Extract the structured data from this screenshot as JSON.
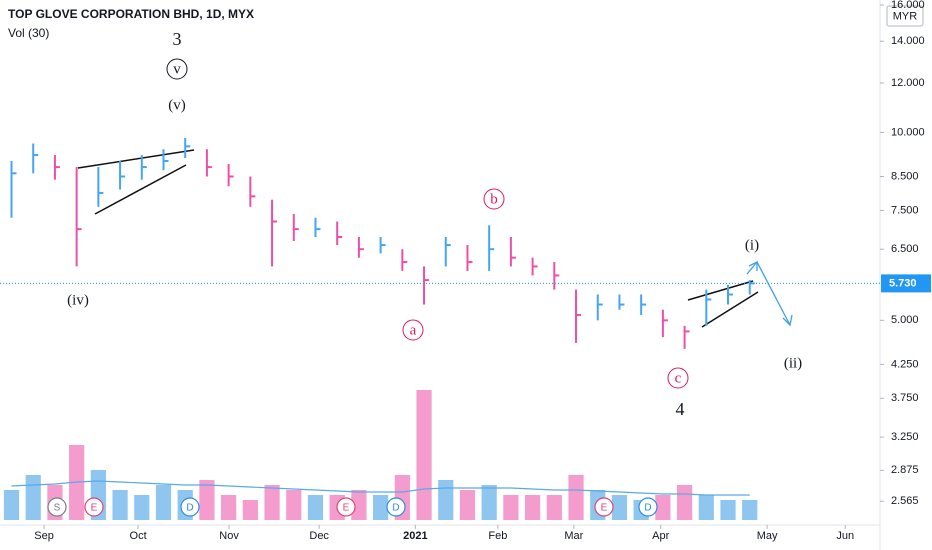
{
  "chart_data": {
    "type": "ohlc",
    "title": "TOP GLOVE CORPORATION BHD, 1D, MYX",
    "subtitle": "Vol (30)",
    "currency": "MYR",
    "log_scale": true,
    "grid": false,
    "up_color": "#42a5f5",
    "down_color": "#ec4fa8",
    "volume_up_color": "#8ec6f0",
    "volume_down_color": "#f39ccd",
    "volume_ma_color": "#5aa9e6",
    "x": [
      -1.5,
      -0.5,
      0.5,
      1.5,
      2.5,
      3.5,
      4.5,
      5.5,
      6.5,
      7.5,
      8.5,
      9.5,
      10.5,
      11.5,
      12.5,
      13.5,
      14.5,
      15.5,
      16.5,
      17.5,
      18.5,
      19.5,
      20.5,
      21.5,
      22.5,
      23.5,
      24.5,
      25.5,
      26.5,
      27.5,
      28.5,
      29.5,
      30.5,
      31.5,
      32.5
    ],
    "high": [
      9.0,
      9.6,
      9.2,
      8.8,
      8.8,
      9.0,
      9.2,
      9.4,
      9.8,
      9.4,
      8.9,
      8.5,
      7.8,
      7.4,
      7.3,
      7.2,
      6.8,
      6.8,
      6.5,
      6.1,
      6.8,
      6.6,
      7.1,
      6.8,
      6.3,
      6.2,
      5.6,
      5.5,
      5.5,
      5.5,
      5.2,
      4.9,
      5.6,
      5.7,
      5.8
    ],
    "low": [
      7.3,
      8.6,
      8.4,
      6.1,
      7.6,
      8.1,
      8.4,
      8.7,
      9.1,
      8.5,
      8.2,
      7.6,
      6.1,
      6.7,
      6.8,
      6.6,
      6.3,
      6.4,
      6.0,
      5.3,
      6.1,
      6.0,
      6.0,
      6.1,
      5.9,
      5.6,
      4.6,
      5.0,
      5.2,
      5.1,
      4.7,
      4.5,
      4.9,
      5.3,
      5.5
    ],
    "close": [
      8.6,
      9.2,
      8.8,
      7.0,
      8.0,
      8.5,
      8.8,
      9.0,
      9.5,
      8.8,
      8.5,
      7.9,
      7.2,
      7.0,
      7.0,
      6.8,
      6.5,
      6.6,
      6.2,
      5.8,
      6.6,
      6.2,
      6.5,
      6.3,
      6.1,
      5.9,
      5.1,
      5.3,
      5.3,
      5.3,
      5.0,
      4.8,
      5.4,
      5.5,
      5.73
    ],
    "volume": [
      30,
      45,
      35,
      75,
      50,
      30,
      25,
      35,
      30,
      40,
      25,
      20,
      35,
      30,
      25,
      25,
      30,
      25,
      45,
      130,
      40,
      30,
      35,
      25,
      25,
      25,
      45,
      30,
      25,
      20,
      25,
      35,
      25,
      20,
      20
    ],
    "volume_ma": [
      34,
      35,
      36,
      38,
      39,
      38,
      37,
      36,
      35,
      35,
      34,
      33,
      32,
      31,
      30,
      29,
      28,
      28,
      28,
      31,
      32,
      32,
      32,
      32,
      31,
      30,
      30,
      29,
      28,
      27,
      26,
      26,
      25,
      25,
      25
    ],
    "volume_ylim": [
      0,
      140
    ],
    "xlim": [
      -2.03,
      38.5
    ],
    "xticks": [
      {
        "value": 0,
        "label": "Sep"
      },
      {
        "value": 4.33,
        "label": "Oct"
      },
      {
        "value": 8.52,
        "label": "Nov"
      },
      {
        "value": 12.67,
        "label": "Dec"
      },
      {
        "value": 17.1,
        "label": "2021"
      },
      {
        "value": 20.9,
        "label": "Feb"
      },
      {
        "value": 24.4,
        "label": "Mar"
      },
      {
        "value": 28.4,
        "label": "Apr"
      },
      {
        "value": 33.3,
        "label": "May"
      },
      {
        "value": 36.9,
        "label": "Jun"
      }
    ],
    "ylim": [
      2.35,
      16.3
    ],
    "yticks": [
      {
        "value": 16,
        "label": "16.000"
      },
      {
        "value": 14,
        "label": "14.000"
      },
      {
        "value": 12,
        "label": "12.000"
      },
      {
        "value": 10,
        "label": "10.000"
      },
      {
        "value": 8.5,
        "label": "8.500"
      },
      {
        "value": 7.5,
        "label": "7.500"
      },
      {
        "value": 6.5,
        "label": "6.500"
      },
      {
        "value": 5,
        "label": "5.000"
      },
      {
        "value": 4.25,
        "label": "4.250"
      },
      {
        "value": 3.75,
        "label": "3.750"
      },
      {
        "value": 3.25,
        "label": "3.250"
      },
      {
        "value": 2.875,
        "label": "2.875"
      },
      {
        "value": 2.565,
        "label": "2.565"
      }
    ],
    "last_price": {
      "value": 5.73,
      "label": "5.730"
    },
    "annotations": [
      "3",
      "v",
      "(v)",
      "(iv)",
      "a",
      "b",
      "c",
      "4",
      "(i)",
      "(ii)"
    ],
    "events": [
      "S",
      "E",
      "D",
      "E",
      "D",
      "E",
      "D"
    ]
  }
}
